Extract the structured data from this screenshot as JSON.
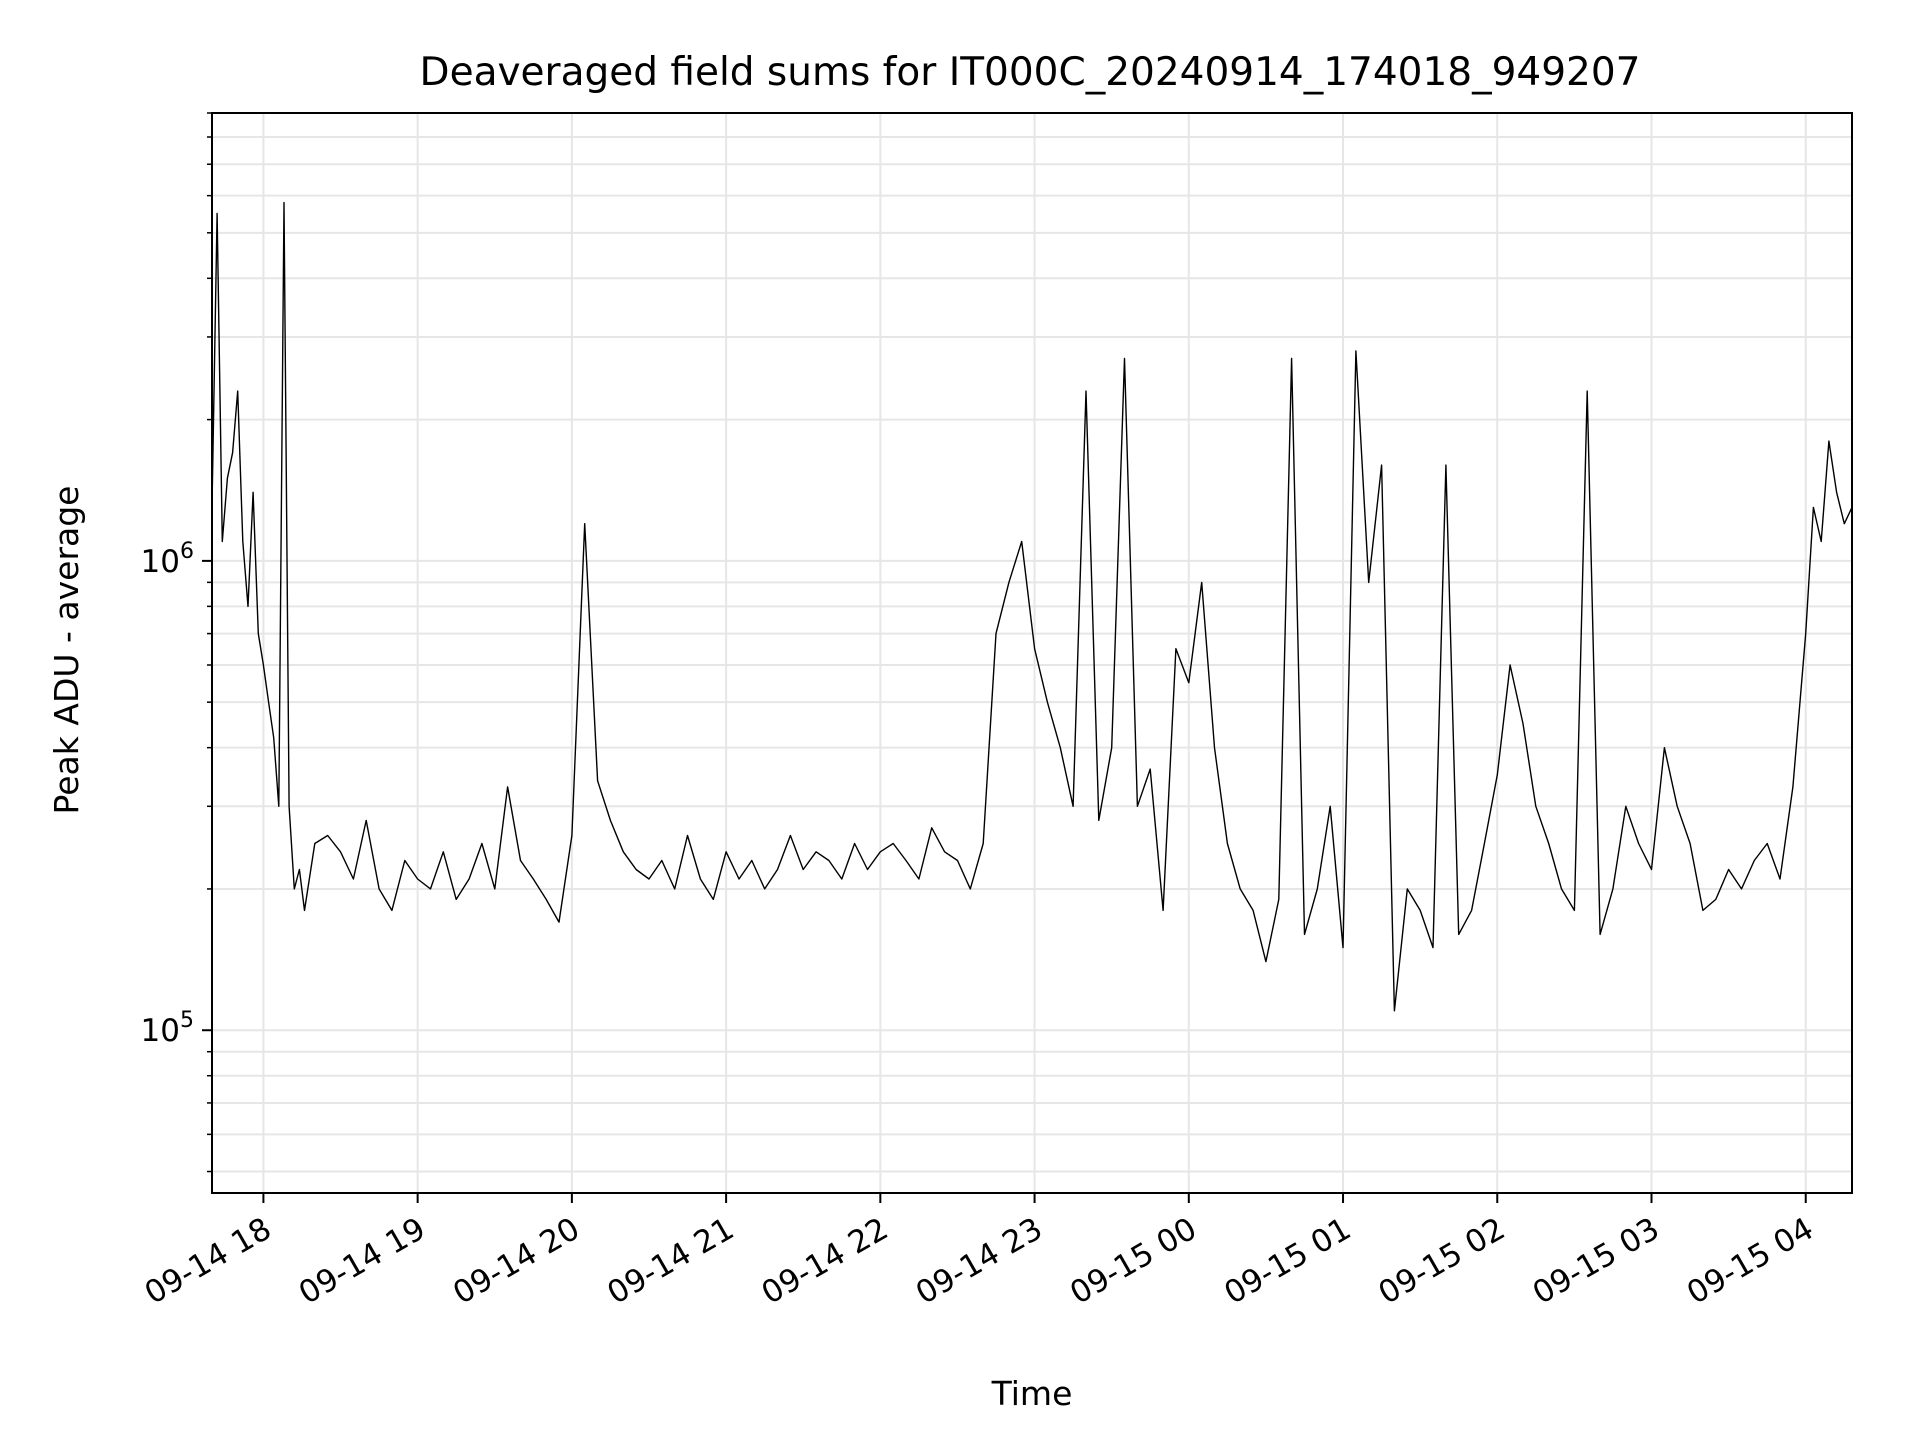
{
  "chart_data": {
    "type": "line",
    "title": "Deaveraged field sums for IT000C_20240914_174018_949207",
    "xlabel": "Time",
    "ylabel": "Peak ADU - average",
    "yscale": "log",
    "grid": true,
    "line_color": "#000000",
    "grid_color": "#e6e6e6",
    "x_range": [
      "2024-09-14 17:40",
      "2024-09-15 04:18"
    ],
    "ylim": [
      45000,
      9000000
    ],
    "x_ticks": [
      {
        "t": "2024-09-14 18:00",
        "label": "09-14 18"
      },
      {
        "t": "2024-09-14 19:00",
        "label": "09-14 19"
      },
      {
        "t": "2024-09-14 20:00",
        "label": "09-14 20"
      },
      {
        "t": "2024-09-14 21:00",
        "label": "09-14 21"
      },
      {
        "t": "2024-09-14 22:00",
        "label": "09-14 22"
      },
      {
        "t": "2024-09-14 23:00",
        "label": "09-14 23"
      },
      {
        "t": "2024-09-15 00:00",
        "label": "09-15 00"
      },
      {
        "t": "2024-09-15 01:00",
        "label": "09-15 01"
      },
      {
        "t": "2024-09-15 02:00",
        "label": "09-15 02"
      },
      {
        "t": "2024-09-15 03:00",
        "label": "09-15 03"
      },
      {
        "t": "2024-09-15 04:00",
        "label": "09-15 04"
      }
    ],
    "y_ticks": [
      {
        "value": 100000,
        "base": "10",
        "exp": "5"
      },
      {
        "value": 1000000,
        "base": "10",
        "exp": "6"
      }
    ],
    "series": [
      {
        "x": [
          "2024-09-14 17:40",
          "2024-09-14 17:42",
          "2024-09-14 17:44",
          "2024-09-14 17:46",
          "2024-09-14 17:48",
          "2024-09-14 17:50",
          "2024-09-14 17:52",
          "2024-09-14 17:54",
          "2024-09-14 17:56",
          "2024-09-14 17:58",
          "2024-09-14 18:00",
          "2024-09-14 18:02",
          "2024-09-14 18:04",
          "2024-09-14 18:06",
          "2024-09-14 18:08",
          "2024-09-14 18:10",
          "2024-09-14 18:12",
          "2024-09-14 18:14",
          "2024-09-14 18:16",
          "2024-09-14 18:20",
          "2024-09-14 18:25",
          "2024-09-14 18:30",
          "2024-09-14 18:35",
          "2024-09-14 18:40",
          "2024-09-14 18:45",
          "2024-09-14 18:50",
          "2024-09-14 18:55",
          "2024-09-14 19:00",
          "2024-09-14 19:05",
          "2024-09-14 19:10",
          "2024-09-14 19:15",
          "2024-09-14 19:20",
          "2024-09-14 19:25",
          "2024-09-14 19:30",
          "2024-09-14 19:35",
          "2024-09-14 19:40",
          "2024-09-14 19:45",
          "2024-09-14 19:50",
          "2024-09-14 19:55",
          "2024-09-14 20:00",
          "2024-09-14 20:05",
          "2024-09-14 20:10",
          "2024-09-14 20:15",
          "2024-09-14 20:20",
          "2024-09-14 20:25",
          "2024-09-14 20:30",
          "2024-09-14 20:35",
          "2024-09-14 20:40",
          "2024-09-14 20:45",
          "2024-09-14 20:50",
          "2024-09-14 20:55",
          "2024-09-14 21:00",
          "2024-09-14 21:05",
          "2024-09-14 21:10",
          "2024-09-14 21:15",
          "2024-09-14 21:20",
          "2024-09-14 21:25",
          "2024-09-14 21:30",
          "2024-09-14 21:35",
          "2024-09-14 21:40",
          "2024-09-14 21:45",
          "2024-09-14 21:50",
          "2024-09-14 21:55",
          "2024-09-14 22:00",
          "2024-09-14 22:05",
          "2024-09-14 22:10",
          "2024-09-14 22:15",
          "2024-09-14 22:20",
          "2024-09-14 22:25",
          "2024-09-14 22:30",
          "2024-09-14 22:35",
          "2024-09-14 22:40",
          "2024-09-14 22:45",
          "2024-09-14 22:50",
          "2024-09-14 22:55",
          "2024-09-14 23:00",
          "2024-09-14 23:05",
          "2024-09-14 23:10",
          "2024-09-14 23:15",
          "2024-09-14 23:20",
          "2024-09-14 23:25",
          "2024-09-14 23:30",
          "2024-09-14 23:35",
          "2024-09-14 23:40",
          "2024-09-14 23:45",
          "2024-09-14 23:50",
          "2024-09-14 23:55",
          "2024-09-15 00:00",
          "2024-09-15 00:05",
          "2024-09-15 00:10",
          "2024-09-15 00:15",
          "2024-09-15 00:20",
          "2024-09-15 00:25",
          "2024-09-15 00:30",
          "2024-09-15 00:35",
          "2024-09-15 00:40",
          "2024-09-15 00:45",
          "2024-09-15 00:50",
          "2024-09-15 00:55",
          "2024-09-15 01:00",
          "2024-09-15 01:05",
          "2024-09-15 01:10",
          "2024-09-15 01:15",
          "2024-09-15 01:20",
          "2024-09-15 01:25",
          "2024-09-15 01:30",
          "2024-09-15 01:35",
          "2024-09-15 01:40",
          "2024-09-15 01:45",
          "2024-09-15 01:50",
          "2024-09-15 01:55",
          "2024-09-15 02:00",
          "2024-09-15 02:05",
          "2024-09-15 02:10",
          "2024-09-15 02:15",
          "2024-09-15 02:20",
          "2024-09-15 02:25",
          "2024-09-15 02:30",
          "2024-09-15 02:35",
          "2024-09-15 02:40",
          "2024-09-15 02:45",
          "2024-09-15 02:50",
          "2024-09-15 02:55",
          "2024-09-15 03:00",
          "2024-09-15 03:05",
          "2024-09-15 03:10",
          "2024-09-15 03:15",
          "2024-09-15 03:20",
          "2024-09-15 03:25",
          "2024-09-15 03:30",
          "2024-09-15 03:35",
          "2024-09-15 03:40",
          "2024-09-15 03:45",
          "2024-09-15 03:50",
          "2024-09-15 03:55",
          "2024-09-15 04:00",
          "2024-09-15 04:03",
          "2024-09-15 04:06",
          "2024-09-15 04:09",
          "2024-09-15 04:12",
          "2024-09-15 04:15",
          "2024-09-15 04:18"
        ],
        "y": [
          1300000,
          5500000,
          1100000,
          1500000,
          1700000,
          2300000,
          1100000,
          800000,
          1400000,
          700000,
          600000,
          500000,
          420000,
          300000,
          5800000,
          300000,
          200000,
          220000,
          180000,
          250000,
          260000,
          240000,
          210000,
          280000,
          200000,
          180000,
          230000,
          210000,
          200000,
          240000,
          190000,
          210000,
          250000,
          200000,
          330000,
          230000,
          210000,
          190000,
          170000,
          260000,
          1200000,
          340000,
          280000,
          240000,
          220000,
          210000,
          230000,
          200000,
          260000,
          210000,
          190000,
          240000,
          210000,
          230000,
          200000,
          220000,
          260000,
          220000,
          240000,
          230000,
          210000,
          250000,
          220000,
          240000,
          250000,
          230000,
          210000,
          270000,
          240000,
          230000,
          200000,
          250000,
          700000,
          900000,
          1100000,
          650000,
          500000,
          400000,
          300000,
          2300000,
          280000,
          400000,
          2700000,
          300000,
          360000,
          180000,
          650000,
          550000,
          900000,
          400000,
          250000,
          200000,
          180000,
          140000,
          190000,
          2700000,
          160000,
          200000,
          300000,
          150000,
          2800000,
          900000,
          1600000,
          110000,
          200000,
          180000,
          150000,
          1600000,
          160000,
          180000,
          250000,
          350000,
          600000,
          450000,
          300000,
          250000,
          200000,
          180000,
          2300000,
          160000,
          200000,
          300000,
          250000,
          220000,
          400000,
          300000,
          250000,
          180000,
          190000,
          220000,
          200000,
          230000,
          250000,
          210000,
          330000,
          700000,
          1300000,
          1100000,
          1800000,
          1400000,
          1200000,
          1300000
        ]
      }
    ]
  }
}
